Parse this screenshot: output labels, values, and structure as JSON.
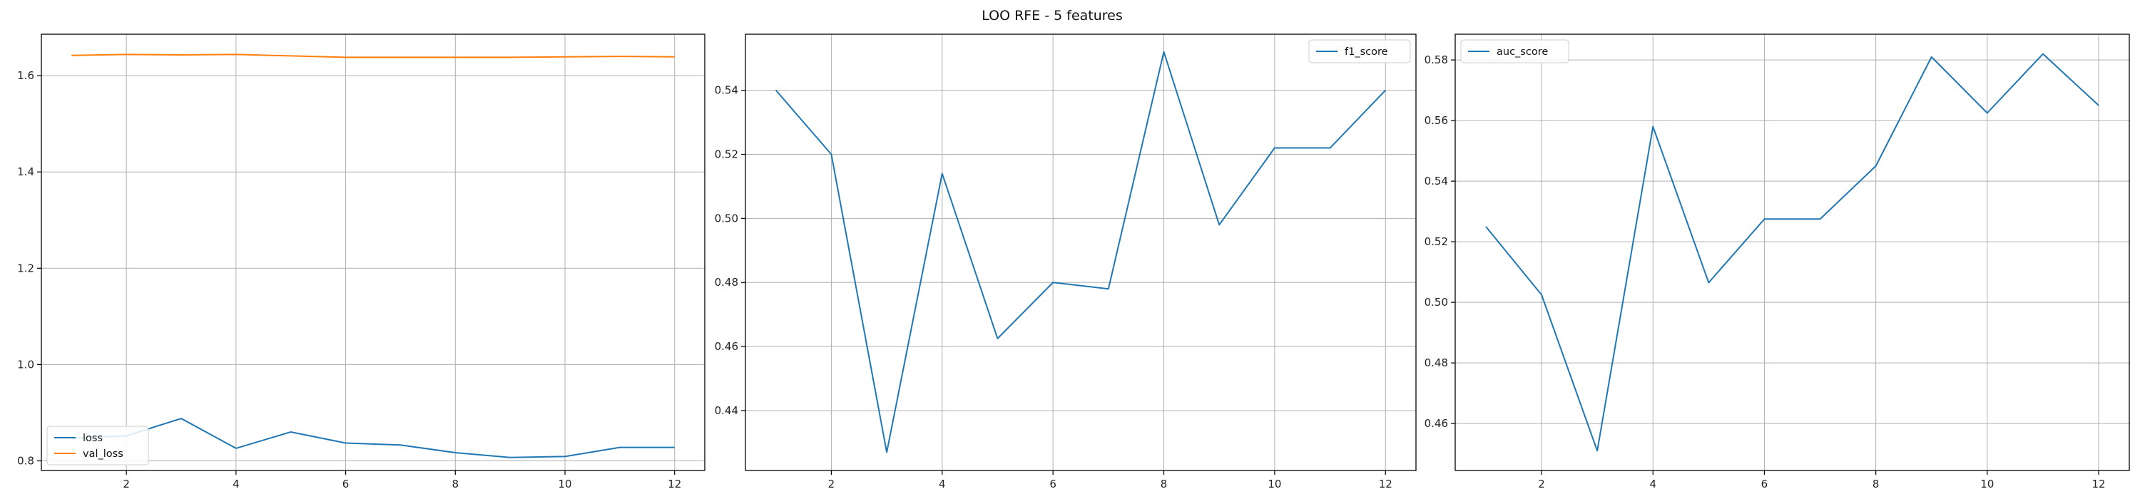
{
  "figure": {
    "suptitle": "LOO RFE - 5 features"
  },
  "chart_data": [
    {
      "type": "line",
      "x": [
        1,
        2,
        3,
        4,
        5,
        6,
        7,
        8,
        9,
        10,
        11,
        12
      ],
      "xlim": [
        0.45,
        12.55
      ],
      "ylim": [
        0.78,
        1.686
      ],
      "xticks": [
        2,
        4,
        6,
        8,
        10,
        12
      ],
      "yticks": [
        0.8,
        1.0,
        1.2,
        1.4,
        1.6
      ],
      "ytick_labels": [
        "0.8",
        "1.0",
        "1.2",
        "1.4",
        "1.6"
      ],
      "grid": true,
      "legend_position": "lower-left",
      "series": [
        {
          "name": "loss",
          "color": "#1f77b4",
          "values": [
            0.847,
            0.852,
            0.888,
            0.826,
            0.86,
            0.837,
            0.833,
            0.817,
            0.807,
            0.809,
            0.828,
            0.828
          ]
        },
        {
          "name": "val_loss",
          "color": "#ff7f0e",
          "values": [
            1.642,
            1.644,
            1.643,
            1.644,
            1.641,
            1.638,
            1.638,
            1.638,
            1.638,
            1.639,
            1.64,
            1.639
          ]
        }
      ]
    },
    {
      "type": "line",
      "x": [
        1,
        2,
        3,
        4,
        5,
        6,
        7,
        8,
        9,
        10,
        11,
        12
      ],
      "xlim": [
        0.45,
        12.55
      ],
      "ylim": [
        0.4213,
        0.5575
      ],
      "xticks": [
        2,
        4,
        6,
        8,
        10,
        12
      ],
      "yticks": [
        0.44,
        0.46,
        0.48,
        0.5,
        0.52,
        0.54
      ],
      "ytick_labels": [
        "0.44",
        "0.46",
        "0.48",
        "0.50",
        "0.52",
        "0.54"
      ],
      "grid": true,
      "legend_position": "upper-right",
      "series": [
        {
          "name": "f1_score",
          "color": "#1f77b4",
          "values": [
            0.54,
            0.52,
            0.427,
            0.514,
            0.4625,
            0.48,
            0.478,
            0.552,
            0.498,
            0.522,
            0.522,
            0.54
          ]
        }
      ]
    },
    {
      "type": "line",
      "x": [
        1,
        2,
        3,
        4,
        5,
        6,
        7,
        8,
        9,
        10,
        11,
        12
      ],
      "xlim": [
        0.45,
        12.55
      ],
      "ylim": [
        0.4445,
        0.5885
      ],
      "xticks": [
        2,
        4,
        6,
        8,
        10,
        12
      ],
      "yticks": [
        0.46,
        0.48,
        0.5,
        0.52,
        0.54,
        0.56,
        0.58
      ],
      "ytick_labels": [
        "0.46",
        "0.48",
        "0.50",
        "0.52",
        "0.54",
        "0.56",
        "0.58"
      ],
      "grid": true,
      "legend_position": "upper-left",
      "series": [
        {
          "name": "auc_score",
          "color": "#1f77b4",
          "values": [
            0.525,
            0.5025,
            0.451,
            0.558,
            0.5065,
            0.5275,
            0.5275,
            0.545,
            0.581,
            0.5625,
            0.582,
            0.565
          ]
        }
      ]
    }
  ]
}
